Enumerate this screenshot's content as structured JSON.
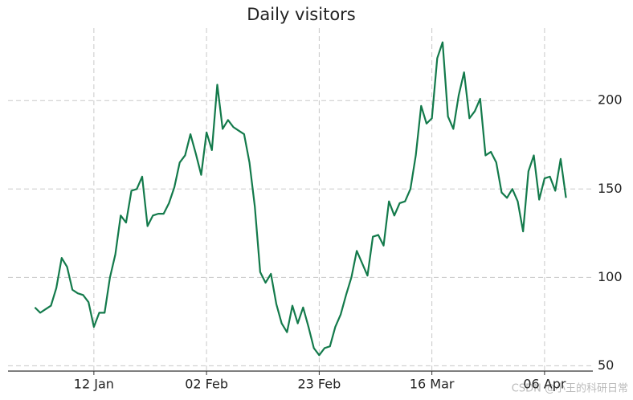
{
  "chart_data": {
    "type": "line",
    "title": "Daily visitors",
    "x": [
      1,
      2,
      3,
      4,
      5,
      6,
      7,
      8,
      9,
      10,
      11,
      12,
      13,
      14,
      15,
      16,
      17,
      18,
      19,
      20,
      21,
      22,
      23,
      24,
      25,
      26,
      27,
      28,
      29,
      30,
      31,
      32,
      33,
      34,
      35,
      36,
      37,
      38,
      39,
      40,
      41,
      42,
      43,
      44,
      45,
      46,
      47,
      48,
      49,
      50,
      51,
      52,
      53,
      54,
      55,
      56,
      57,
      58,
      59,
      60,
      61,
      62,
      63,
      64,
      65,
      66,
      67,
      68,
      69,
      70,
      71,
      72,
      73,
      74,
      75,
      76,
      77,
      78,
      79,
      80,
      81,
      82,
      83,
      84,
      85,
      86,
      87,
      88,
      89,
      90,
      91,
      92,
      93,
      94,
      95,
      96,
      97,
      98,
      99,
      100
    ],
    "series": [
      {
        "name": "Daily visitors",
        "color": "#137a4b",
        "values": [
          83,
          80,
          82,
          84,
          94,
          111,
          106,
          93,
          91,
          90,
          86,
          72,
          80,
          80,
          100,
          113,
          135,
          131,
          149,
          150,
          157,
          129,
          135,
          136,
          136,
          142,
          151,
          165,
          169,
          181,
          170,
          158,
          182,
          172,
          209,
          184,
          189,
          185,
          183,
          181,
          165,
          140,
          103,
          97,
          102,
          85,
          74,
          69,
          84,
          74,
          83,
          72,
          60,
          56,
          60,
          61,
          72,
          79,
          90,
          100,
          115,
          108,
          101,
          123,
          124,
          118,
          143,
          135,
          142,
          143,
          150,
          169,
          197,
          187,
          190,
          224,
          233,
          191,
          184,
          203,
          216,
          190,
          194,
          201,
          169,
          171,
          165,
          148,
          145,
          150,
          143,
          126,
          160,
          169,
          144,
          156,
          157,
          149,
          167,
          145
        ]
      }
    ],
    "xlim": [
      -4,
      105
    ],
    "xticks": [
      {
        "value": 12,
        "label": "12 Jan"
      },
      {
        "value": 33,
        "label": "02 Feb"
      },
      {
        "value": 54,
        "label": "23 Feb"
      },
      {
        "value": 75,
        "label": "16 Mar"
      },
      {
        "value": 96,
        "label": "06 Apr"
      }
    ],
    "ylim": [
      47,
      241
    ],
    "yticks": [
      50,
      100,
      150,
      200
    ],
    "grid": true,
    "watermark": "CSDN @小王的科研日常"
  }
}
